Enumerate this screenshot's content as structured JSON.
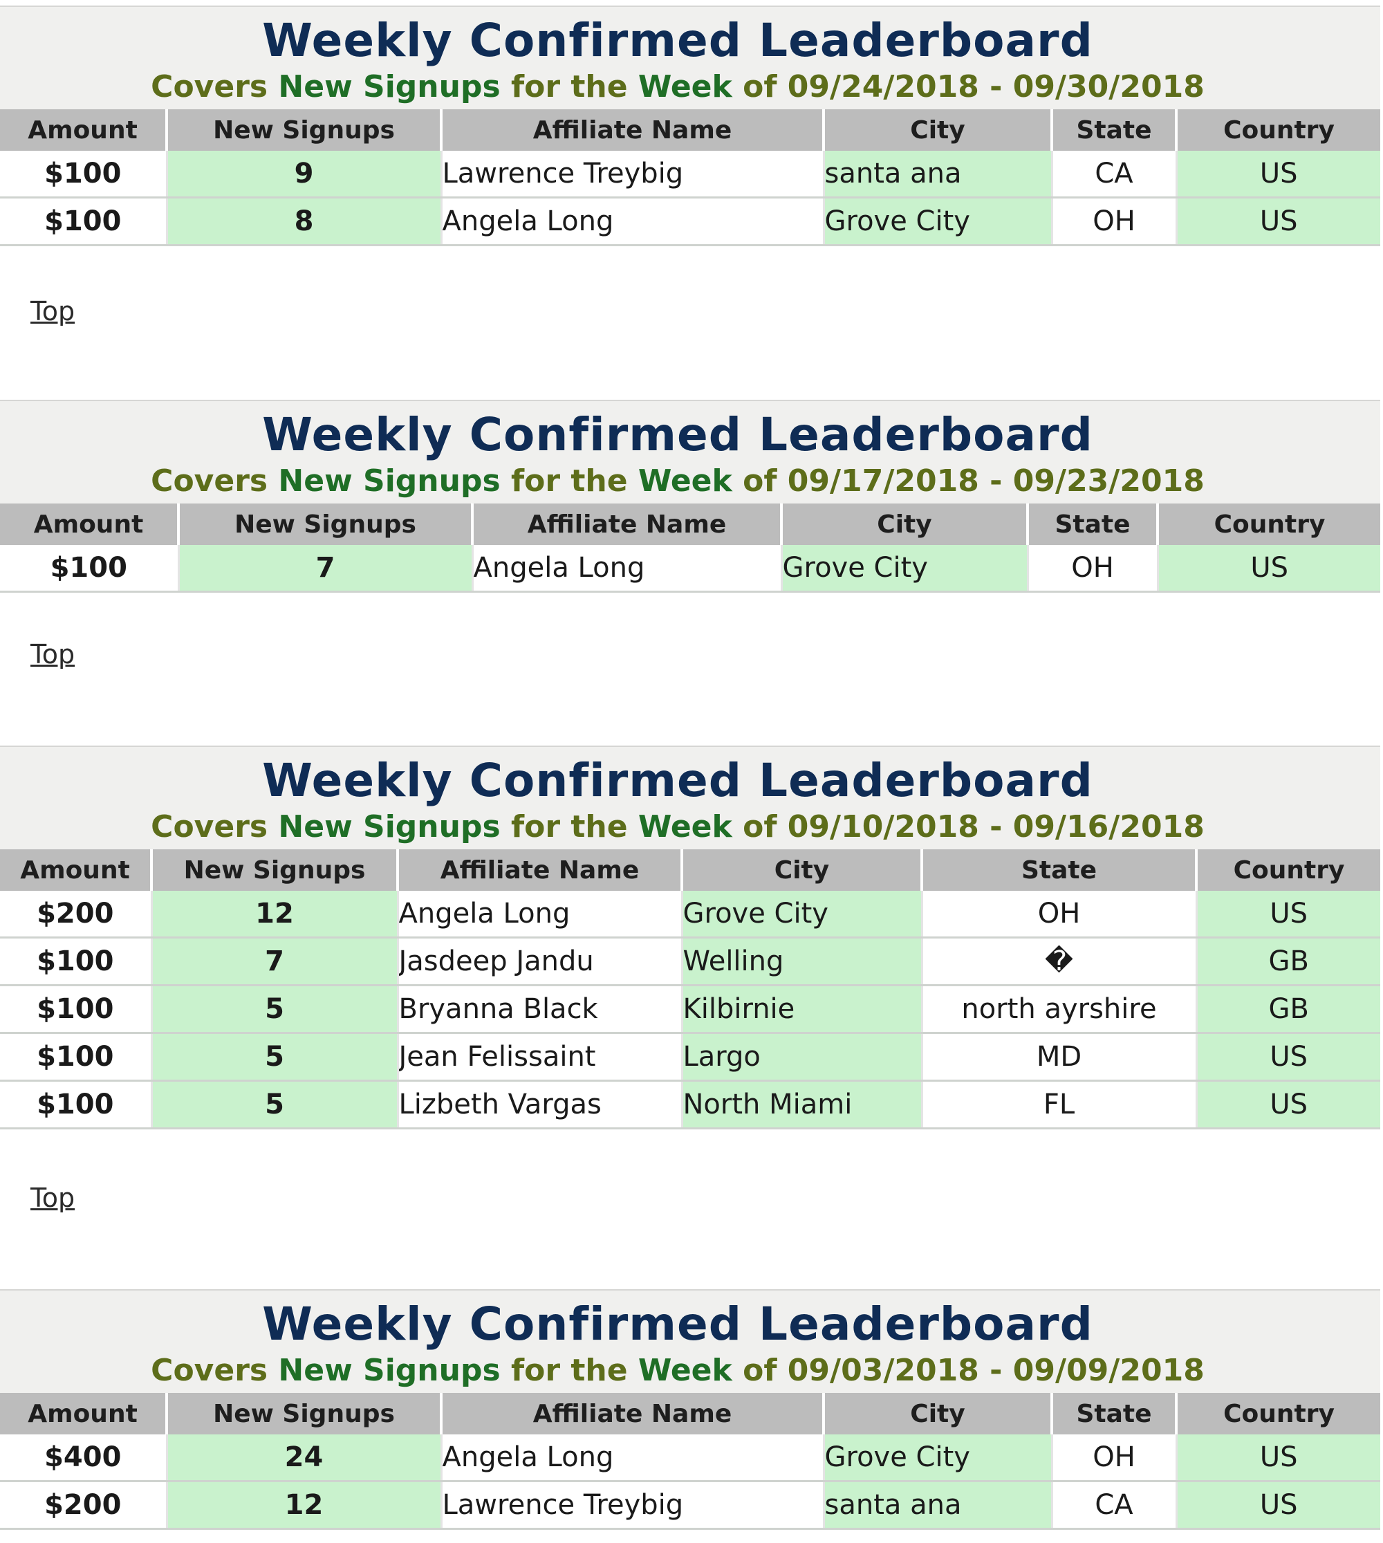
{
  "boards": [
    {
      "title": "Weekly Confirmed Leaderboard",
      "subtitle_a": "Covers ",
      "subtitle_b": "New Signups",
      "subtitle_c": " for the ",
      "subtitle_d": "Week",
      "subtitle_e": " of 09/24/2018 - 09/30/2018",
      "columns": [
        "Amount",
        "New Signups",
        "Affiliate Name",
        "City",
        "State",
        "Country"
      ],
      "rows": [
        {
          "amount": "$100",
          "signups": "9",
          "name": "Lawrence Treybig",
          "city": "santa ana",
          "state": "CA",
          "country": "US"
        },
        {
          "amount": "$100",
          "signups": "8",
          "name": "Angela Long",
          "city": "Grove City",
          "state": "OH",
          "country": "US"
        }
      ],
      "top_label": "Top"
    },
    {
      "title": "Weekly Confirmed Leaderboard",
      "subtitle_a": "Covers ",
      "subtitle_b": "New Signups",
      "subtitle_c": " for the ",
      "subtitle_d": "Week",
      "subtitle_e": " of 09/17/2018 - 09/23/2018",
      "columns": [
        "Amount",
        "New Signups",
        "Affiliate Name",
        "City",
        "State",
        "Country"
      ],
      "rows": [
        {
          "amount": "$100",
          "signups": "7",
          "name": "Angela Long",
          "city": "Grove City",
          "state": "OH",
          "country": "US"
        }
      ],
      "top_label": "Top"
    },
    {
      "title": "Weekly Confirmed Leaderboard",
      "subtitle_a": "Covers ",
      "subtitle_b": "New Signups",
      "subtitle_c": " for the ",
      "subtitle_d": "Week",
      "subtitle_e": " of 09/10/2018 - 09/16/2018",
      "columns": [
        "Amount",
        "New Signups",
        "Affiliate Name",
        "City",
        "State",
        "Country"
      ],
      "rows": [
        {
          "amount": "$200",
          "signups": "12",
          "name": "Angela Long",
          "city": "Grove City",
          "state": "OH",
          "country": "US"
        },
        {
          "amount": "$100",
          "signups": "7",
          "name": "Jasdeep Jandu",
          "city": "Welling",
          "state": "�",
          "country": "GB"
        },
        {
          "amount": "$100",
          "signups": "5",
          "name": "Bryanna Black",
          "city": "Kilbirnie",
          "state": "north ayrshire",
          "country": "GB"
        },
        {
          "amount": "$100",
          "signups": "5",
          "name": "Jean Felissaint",
          "city": "Largo",
          "state": "MD",
          "country": "US"
        },
        {
          "amount": "$100",
          "signups": "5",
          "name": "Lizbeth Vargas",
          "city": "North Miami",
          "state": "FL",
          "country": "US"
        }
      ],
      "top_label": "Top"
    },
    {
      "title": "Weekly Confirmed Leaderboard",
      "subtitle_a": "Covers ",
      "subtitle_b": "New Signups",
      "subtitle_c": " for the ",
      "subtitle_d": "Week",
      "subtitle_e": " of 09/03/2018 - 09/09/2018",
      "columns": [
        "Amount",
        "New Signups",
        "Affiliate Name",
        "City",
        "State",
        "Country"
      ],
      "rows": [
        {
          "amount": "$400",
          "signups": "24",
          "name": "Angela Long",
          "city": "Grove City",
          "state": "OH",
          "country": "US"
        },
        {
          "amount": "$200",
          "signups": "12",
          "name": "Lawrence Treybig",
          "city": "santa ana",
          "state": "CA",
          "country": "US"
        }
      ]
    }
  ]
}
